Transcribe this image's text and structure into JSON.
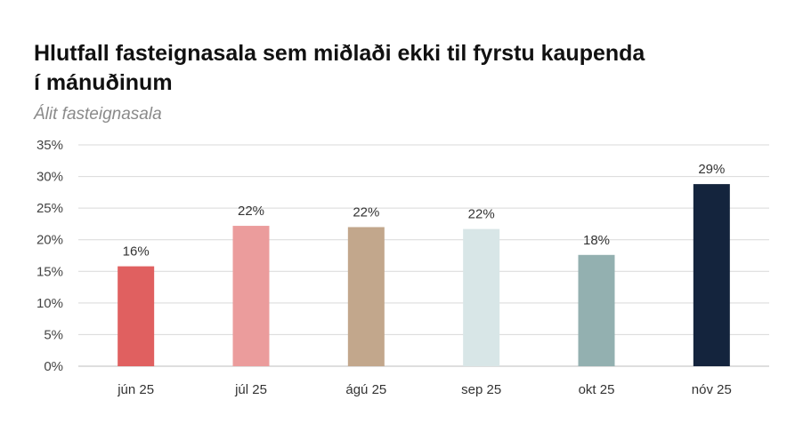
{
  "chart_data": {
    "type": "bar",
    "title": "Hlutfall fasteignasala sem miðlaði ekki til fyrstu kaupenda í mánuðinum",
    "subtitle": "Álit fasteignasala",
    "categories": [
      "jún 25",
      "júl 25",
      "ágú 25",
      "sep 25",
      "okt 25",
      "nóv 25"
    ],
    "values": [
      15.8,
      22.2,
      22.0,
      21.7,
      17.6,
      28.8
    ],
    "data_labels": [
      "16%",
      "22%",
      "22%",
      "22%",
      "18%",
      "29%"
    ],
    "colors": [
      "#e06060",
      "#eb9c9c",
      "#c2a78c",
      "#d8e6e7",
      "#93b0b0",
      "#14243d"
    ],
    "ylim": [
      0,
      35
    ],
    "yticks": [
      0,
      5,
      10,
      15,
      20,
      25,
      30,
      35
    ],
    "ytick_labels": [
      "0%",
      "5%",
      "10%",
      "15%",
      "20%",
      "25%",
      "30%",
      "35%"
    ],
    "grid": true,
    "legend": "none"
  }
}
